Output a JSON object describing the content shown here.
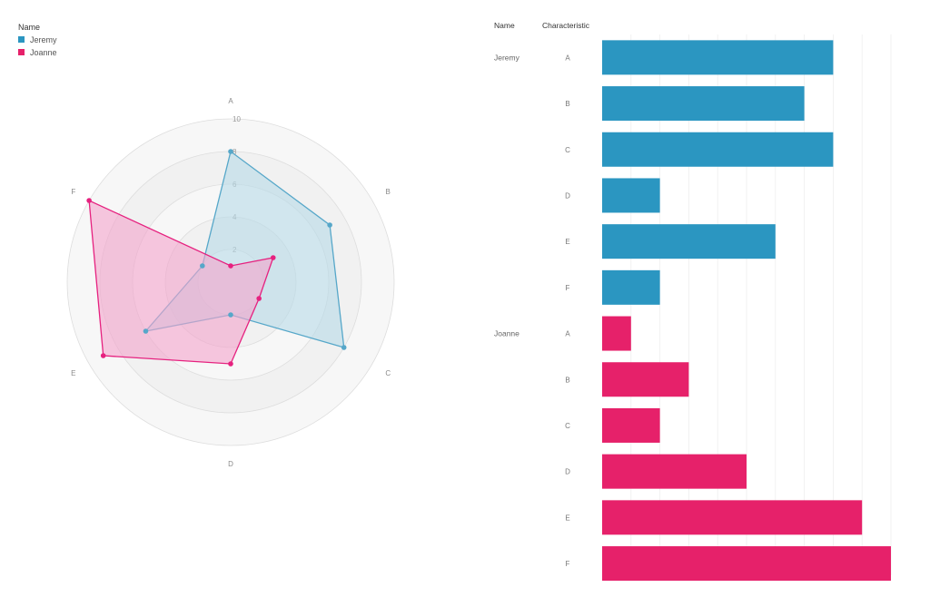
{
  "legend": {
    "title": "Name",
    "items": [
      {
        "label": "Jeremy",
        "color": "#2b96c1"
      },
      {
        "label": "Joanne",
        "color": "#e6216a"
      }
    ]
  },
  "table_headers": {
    "name": "Name",
    "characteristic": "Characteristic"
  },
  "chart_data": [
    {
      "type": "radar",
      "axes": [
        "A",
        "B",
        "C",
        "D",
        "E",
        "F"
      ],
      "rings": [
        2,
        4,
        6,
        8,
        10
      ],
      "ring_labels": [
        "2",
        "4",
        "6",
        "8",
        "10"
      ],
      "max": 10,
      "series": [
        {
          "name": "Jeremy",
          "values": [
            8,
            7,
            8,
            2,
            6,
            2
          ],
          "color": "#56a7c9",
          "fill": "#b8dbe8"
        },
        {
          "name": "Joanne",
          "values": [
            1,
            3,
            2,
            5,
            9,
            10
          ],
          "color": "#e6217f",
          "fill": "#f4a3cc"
        }
      ]
    },
    {
      "type": "bar",
      "orientation": "horizontal",
      "groups": [
        {
          "name": "Jeremy",
          "color": "#2b96c1",
          "categories": [
            "A",
            "B",
            "C",
            "D",
            "E",
            "F"
          ],
          "values": [
            8,
            7,
            8,
            2,
            6,
            2
          ]
        },
        {
          "name": "Joanne",
          "color": "#e6216a",
          "categories": [
            "A",
            "B",
            "C",
            "D",
            "E",
            "F"
          ],
          "values": [
            1,
            3,
            2,
            5,
            9,
            10
          ]
        }
      ],
      "xlim": [
        0,
        10
      ]
    }
  ]
}
